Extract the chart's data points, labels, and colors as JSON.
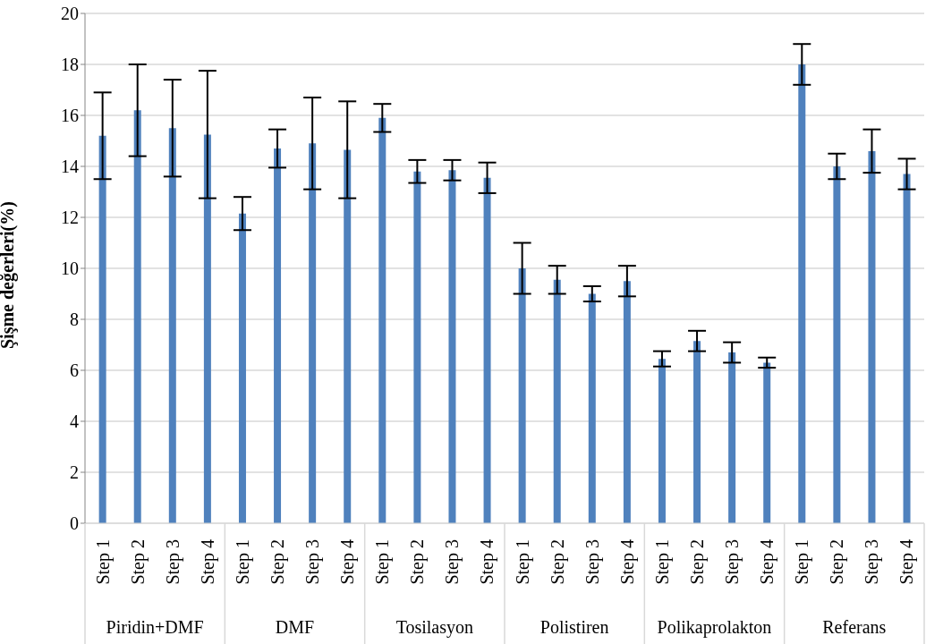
{
  "chart_data": {
    "type": "bar",
    "ylabel": "Şişme değerleri(%)",
    "categories": [
      "Step 1",
      "Step 2",
      "Step 3",
      "Step 4",
      "Step 1",
      "Step 2",
      "Step 3",
      "Step 4",
      "Step 1",
      "Step 2",
      "Step 3",
      "Step 4",
      "Step 1",
      "Step 2",
      "Step 3",
      "Step 4",
      "Step 1",
      "Step 2",
      "Step 3",
      "Step 4",
      "Step 1",
      "Step 2",
      "Step 3",
      "Step 4"
    ],
    "values": [
      15.2,
      16.2,
      15.5,
      15.25,
      12.15,
      14.7,
      14.9,
      14.65,
      15.9,
      13.8,
      13.85,
      13.55,
      10.0,
      9.55,
      9.0,
      9.5,
      6.45,
      7.15,
      6.7,
      6.3,
      18.0,
      14.0,
      14.6,
      13.7
    ],
    "errors": [
      1.7,
      1.8,
      1.9,
      2.5,
      0.65,
      0.75,
      1.8,
      1.9,
      0.55,
      0.45,
      0.4,
      0.6,
      1.0,
      0.55,
      0.3,
      0.6,
      0.3,
      0.4,
      0.4,
      0.2,
      0.8,
      0.5,
      0.85,
      0.6
    ],
    "color": "#4f81bd",
    "ylim": [
      0,
      20
    ],
    "yticks": [
      0,
      2,
      4,
      6,
      8,
      10,
      12,
      14,
      16,
      18,
      20
    ],
    "grid": "y",
    "annotations": [
      "Piridin+DMF",
      "DMF",
      "Tosilasyon",
      "Polistiren",
      "Polikaprolakton",
      "Referans"
    ]
  }
}
